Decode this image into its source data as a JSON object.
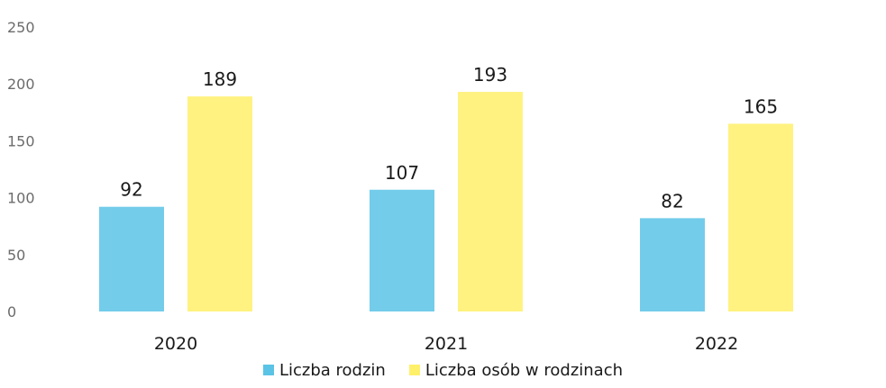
{
  "chart_data": {
    "type": "bar",
    "categories": [
      "2020",
      "2021",
      "2022"
    ],
    "series": [
      {
        "name": "Liczba rodzin",
        "values": [
          92,
          107,
          82
        ],
        "color": "#5bc3e6"
      },
      {
        "name": "Liczba osób w rodzinach",
        "values": [
          189,
          193,
          165
        ],
        "color": "#fff06a"
      }
    ],
    "ylim": [
      0,
      250
    ],
    "yticks": [
      "0",
      "50",
      "100",
      "150",
      "200",
      "250"
    ],
    "grid": false,
    "legend_position": "bottom"
  }
}
